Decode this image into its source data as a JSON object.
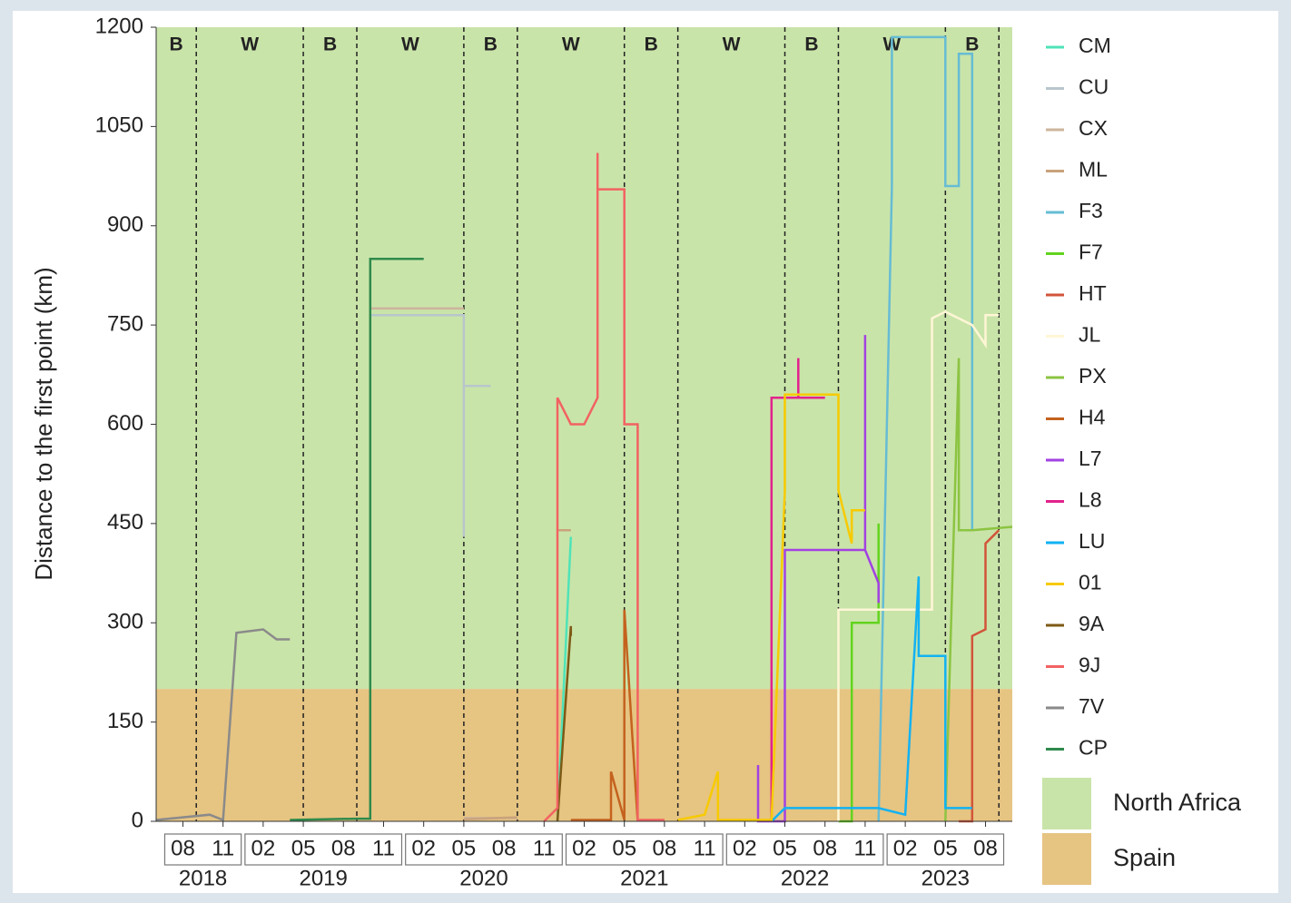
{
  "chart_data": {
    "type": "line",
    "y_label": "Distance to the first point (km)",
    "ylim": [
      0,
      1200
    ],
    "yticks": [
      0,
      150,
      300,
      450,
      600,
      750,
      900,
      1050,
      1200
    ],
    "xlim": [
      "2018-06",
      "2023-10"
    ],
    "xticks": [
      {
        "value": "2018-08",
        "label": "08"
      },
      {
        "value": "2018-11",
        "label": "11"
      },
      {
        "value": "2019-02",
        "label": "02"
      },
      {
        "value": "2019-05",
        "label": "05"
      },
      {
        "value": "2019-08",
        "label": "08"
      },
      {
        "value": "2019-11",
        "label": "11"
      },
      {
        "value": "2020-02",
        "label": "02"
      },
      {
        "value": "2020-05",
        "label": "05"
      },
      {
        "value": "2020-08",
        "label": "08"
      },
      {
        "value": "2020-11",
        "label": "11"
      },
      {
        "value": "2021-02",
        "label": "02"
      },
      {
        "value": "2021-05",
        "label": "05"
      },
      {
        "value": "2021-08",
        "label": "08"
      },
      {
        "value": "2021-11",
        "label": "11"
      },
      {
        "value": "2022-02",
        "label": "02"
      },
      {
        "value": "2022-05",
        "label": "05"
      },
      {
        "value": "2022-08",
        "label": "08"
      },
      {
        "value": "2022-11",
        "label": "11"
      },
      {
        "value": "2023-02",
        "label": "02"
      },
      {
        "value": "2023-05",
        "label": "05"
      },
      {
        "value": "2023-08",
        "label": "08"
      }
    ],
    "years": [
      "2018",
      "2019",
      "2020",
      "2021",
      "2022",
      "2023"
    ],
    "season_dividers": [
      "2018-09",
      "2019-05",
      "2019-09",
      "2020-05",
      "2020-09",
      "2021-05",
      "2021-09",
      "2022-05",
      "2022-09",
      "2023-05",
      "2023-09"
    ],
    "season_labels": [
      "B",
      "W",
      "B",
      "W",
      "B",
      "W",
      "B",
      "W",
      "B",
      "W",
      "B"
    ],
    "regions": [
      {
        "name": "North Africa",
        "color": "#c9e4a9",
        "range": [
          200,
          1200
        ]
      },
      {
        "name": "Spain",
        "color": "#e6c482",
        "range": [
          0,
          200
        ]
      }
    ],
    "series": [
      {
        "name": "CM",
        "color": "#4fe3b8",
        "x": [
          "2020-12",
          "2021-01"
        ],
        "values": [
          0,
          430
        ]
      },
      {
        "name": "CU",
        "color": "#b8c6cc",
        "x": [
          "2019-10",
          "2019-11",
          "2020-05",
          "2020-05",
          "2020-05",
          "2020-07"
        ],
        "values": [
          765,
          765,
          765,
          430,
          658,
          658
        ]
      },
      {
        "name": "CX",
        "color": "#cdb59c",
        "x": [
          "2019-10",
          "2020-05",
          "2020-05",
          "2020-05",
          "2020-09"
        ],
        "values": [
          775,
          775,
          null,
          5,
          5
        ]
      },
      {
        "name": "ML",
        "color": "#c9a27c",
        "x": [
          "2020-05",
          "2020-09",
          "2020-12",
          "2020-12",
          "2021-01"
        ],
        "values": [
          3,
          6,
          null,
          440,
          440
        ]
      },
      {
        "name": "F3",
        "color": "#66bcd4",
        "x": [
          "2022-12",
          "2023-01",
          "2023-01",
          "2023-05",
          "2023-05",
          "2023-06",
          "2023-06",
          "2023-07",
          "2023-07"
        ],
        "values": [
          0,
          960,
          1185,
          1185,
          960,
          960,
          1160,
          1160,
          440
        ]
      },
      {
        "name": "F7",
        "color": "#62d41e",
        "x": [
          "2022-09",
          "2022-10",
          "2022-10",
          "2022-11",
          "2022-12",
          "2022-12"
        ],
        "values": [
          0,
          0,
          300,
          300,
          300,
          450
        ]
      },
      {
        "name": "HT",
        "color": "#d2553a",
        "x": [
          "2023-06",
          "2023-07",
          "2023-07",
          "2023-08",
          "2023-08",
          "2023-09"
        ],
        "values": [
          0,
          0,
          280,
          290,
          420,
          440
        ]
      },
      {
        "name": "JL",
        "color": "#fff6d6",
        "x": [
          "2022-09",
          "2022-09",
          "2023-04",
          "2023-04",
          "2023-05",
          "2023-07",
          "2023-08",
          "2023-08",
          "2023-09"
        ],
        "values": [
          0,
          320,
          320,
          760,
          770,
          750,
          720,
          765,
          765
        ]
      },
      {
        "name": "PX",
        "color": "#8cc442",
        "x": [
          "2023-05",
          "2023-06",
          "2023-06",
          "2023-07",
          "2023-10"
        ],
        "values": [
          0,
          700,
          440,
          440,
          445
        ]
      },
      {
        "name": "H4",
        "color": "#c4621e",
        "x": [
          "2021-01",
          "2021-04",
          "2021-04",
          "2021-05",
          "2021-05",
          "2021-06"
        ],
        "values": [
          2,
          2,
          75,
          2,
          320,
          0
        ]
      },
      {
        "name": "L7",
        "color": "#a242e2",
        "x": [
          "2022-03",
          "2022-03",
          "2022-05",
          "2022-05",
          "2022-11",
          "2022-11",
          "2022-11",
          "2022-12",
          "2022-12"
        ],
        "values": [
          85,
          0,
          0,
          410,
          410,
          735,
          410,
          360,
          330
        ]
      },
      {
        "name": "L8",
        "color": "#e2228c",
        "x": [
          "2022-04",
          "2022-04",
          "2022-06",
          "2022-06",
          "2022-06",
          "2022-08"
        ],
        "values": [
          0,
          640,
          640,
          700,
          640,
          640
        ]
      },
      {
        "name": "LU",
        "color": "#12b2f2",
        "x": [
          "2022-04",
          "2022-05",
          "2022-12",
          "2023-02",
          "2023-03",
          "2023-03",
          "2023-05",
          "2023-05",
          "2023-07"
        ],
        "values": [
          0,
          20,
          20,
          10,
          370,
          250,
          250,
          20,
          20
        ]
      },
      {
        "name": "01",
        "color": "#f7ca00",
        "x": [
          "2021-09",
          "2021-11",
          "2021-12",
          "2021-12",
          "2022-04",
          "2022-05",
          "2022-05",
          "2022-09",
          "2022-09",
          "2022-10",
          "2022-10",
          "2022-11"
        ],
        "values": [
          2,
          10,
          75,
          2,
          2,
          500,
          645,
          645,
          500,
          420,
          470,
          470
        ]
      },
      {
        "name": "9A",
        "color": "#7d5a16",
        "x": [
          "2020-12",
          "2021-01",
          "2021-01",
          "2021-01"
        ],
        "values": [
          0,
          295,
          290,
          280
        ]
      },
      {
        "name": "9J",
        "color": "#f26262",
        "x": [
          "2020-11",
          "2020-12",
          "2020-12",
          "2021-01",
          "2021-02",
          "2021-03",
          "2021-03",
          "2021-03",
          "2021-05",
          "2021-05",
          "2021-06",
          "2021-06",
          "2021-08"
        ],
        "values": [
          0,
          20,
          640,
          600,
          600,
          640,
          1010,
          955,
          955,
          600,
          600,
          2,
          2
        ]
      },
      {
        "name": "7V",
        "color": "#8a8a8a",
        "x": [
          "2018-06",
          "2018-10",
          "2018-11",
          "2018-12",
          "2019-02",
          "2019-03",
          "2019-04"
        ],
        "values": [
          2,
          10,
          2,
          285,
          290,
          275,
          275
        ]
      },
      {
        "name": "CP",
        "color": "#2f8a4c",
        "x": [
          "2019-04",
          "2019-09",
          "2019-10",
          "2019-10",
          "2019-10",
          "2020-02"
        ],
        "values": [
          2,
          4,
          4,
          440,
          850,
          850
        ]
      }
    ]
  }
}
